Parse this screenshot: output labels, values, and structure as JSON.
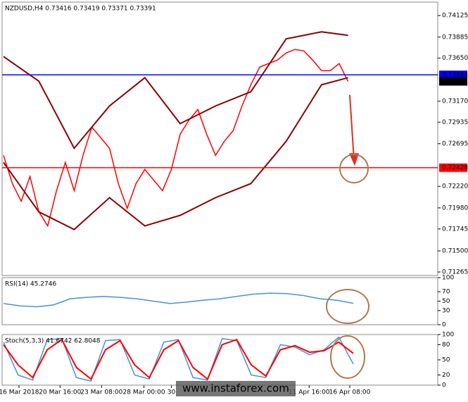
{
  "watermark": "www.instaforex.com",
  "chart_data": [
    {
      "type": "line",
      "title": "NZDUSD,H4  0.73416 0.73419 0.73371 0.73391",
      "xlim": [
        0,
        49
      ],
      "ylim": [
        0.71226,
        0.74275
      ],
      "yticks": [
        0.74125,
        0.73885,
        {
          "value": 0.7365,
          "label": "0.73650"
        },
        {
          "value": 0.7317,
          "label": "0.73170"
        },
        0.72935,
        0.72695,
        {
          "value": 0.7222,
          "label": "0.72220"
        },
        {
          "value": 0.7198,
          "label": "0.71980"
        },
        0.71745,
        {
          "value": 0.715,
          "label": "0.71500"
        },
        0.71265
      ],
      "xticks": [
        {
          "value": 1.75,
          "label": "16 Mar 2018"
        },
        {
          "value": 6.4,
          "label": "20 Mar 16:00"
        },
        {
          "value": 11.1,
          "label": "23 Mar 08:00"
        },
        {
          "value": 15.9,
          "label": "28 Mar 00:00"
        },
        {
          "value": 19,
          "label": "30"
        },
        {
          "value": 34.6,
          "label": "11 Apr 16:00"
        },
        {
          "value": 39.2,
          "label": "16 Apr 08:00"
        }
      ],
      "levels": [
        {
          "value": 0.73464,
          "color": "#0000ff"
        },
        {
          "value": 0.72428,
          "color": "#ff0000"
        }
      ],
      "last_price": 0.73391,
      "series": [
        {
          "color": "#ff0000",
          "x": [
            0,
            1,
            2,
            3,
            4,
            5,
            6,
            7,
            8,
            9,
            10,
            11,
            12,
            13,
            14,
            15,
            16,
            17,
            18,
            19,
            20,
            21,
            22,
            23,
            24,
            25,
            26,
            27,
            28,
            29,
            30,
            31,
            32,
            33,
            34,
            35,
            36,
            37,
            38,
            39
          ],
          "values": [
            0.72566,
            0.72251,
            0.72054,
            0.7233,
            0.71936,
            0.71779,
            0.72172,
            0.72487,
            0.72172,
            0.72566,
            0.72881,
            0.72763,
            0.72645,
            0.72251,
            0.71975,
            0.72251,
            0.72408,
            0.7229,
            0.72172,
            0.72408,
            0.72802,
            0.7296,
            0.73078,
            0.72802,
            0.72566,
            0.72723,
            0.72842,
            0.73117,
            0.73353,
            0.7355,
            0.7359,
            0.73629,
            0.73708,
            0.73747,
            0.73731,
            0.73629,
            0.73511,
            0.73511,
            0.7359,
            0.73391
          ]
        },
        {
          "color": "#8b0000",
          "x": [
            0,
            4,
            8,
            12,
            16,
            20,
            24,
            28,
            32,
            36,
            39
          ],
          "values": [
            0.73668,
            0.73393,
            0.72645,
            0.73117,
            0.73432,
            0.7292,
            0.73117,
            0.73275,
            0.73865,
            0.73944,
            0.73905
          ]
        },
        {
          "color": "#8b0000",
          "x": [
            0,
            4,
            8,
            12,
            16,
            20,
            24,
            28,
            32,
            36,
            39
          ],
          "values": [
            0.72487,
            0.71936,
            0.71739,
            0.72094,
            0.71779,
            0.71897,
            0.72094,
            0.72251,
            0.72723,
            0.73353,
            0.73432
          ]
        }
      ]
    },
    {
      "type": "line",
      "title": "RSI(14) 45.2746",
      "ylim": [
        0,
        100
      ],
      "yticks": [
        100,
        70,
        50,
        30,
        0
      ],
      "series": [
        {
          "color": "#4a90d9",
          "values": [
            45,
            40,
            38,
            42,
            55,
            58,
            60,
            58,
            55,
            50,
            45,
            48,
            52,
            55,
            60,
            65,
            67,
            66,
            62,
            55,
            52,
            45.2746
          ]
        }
      ]
    },
    {
      "type": "line",
      "title": "Stoch(5,3,3) 41.6742 62.8048",
      "ylim": [
        0,
        100
      ],
      "yticks": [
        100,
        80,
        50,
        20,
        0
      ],
      "series": [
        {
          "color": "#4a90d9",
          "values": [
            85,
            20,
            10,
            90,
            92,
            15,
            8,
            88,
            90,
            20,
            12,
            85,
            90,
            15,
            10,
            92,
            88,
            20,
            15,
            80,
            75,
            60,
            70,
            95,
            41.6742
          ]
        },
        {
          "color": "#ff0000",
          "values": [
            80,
            40,
            15,
            70,
            90,
            35,
            12,
            70,
            88,
            40,
            15,
            70,
            88,
            35,
            12,
            80,
            90,
            40,
            18,
            70,
            78,
            65,
            68,
            85,
            62.8048
          ]
        }
      ]
    }
  ]
}
